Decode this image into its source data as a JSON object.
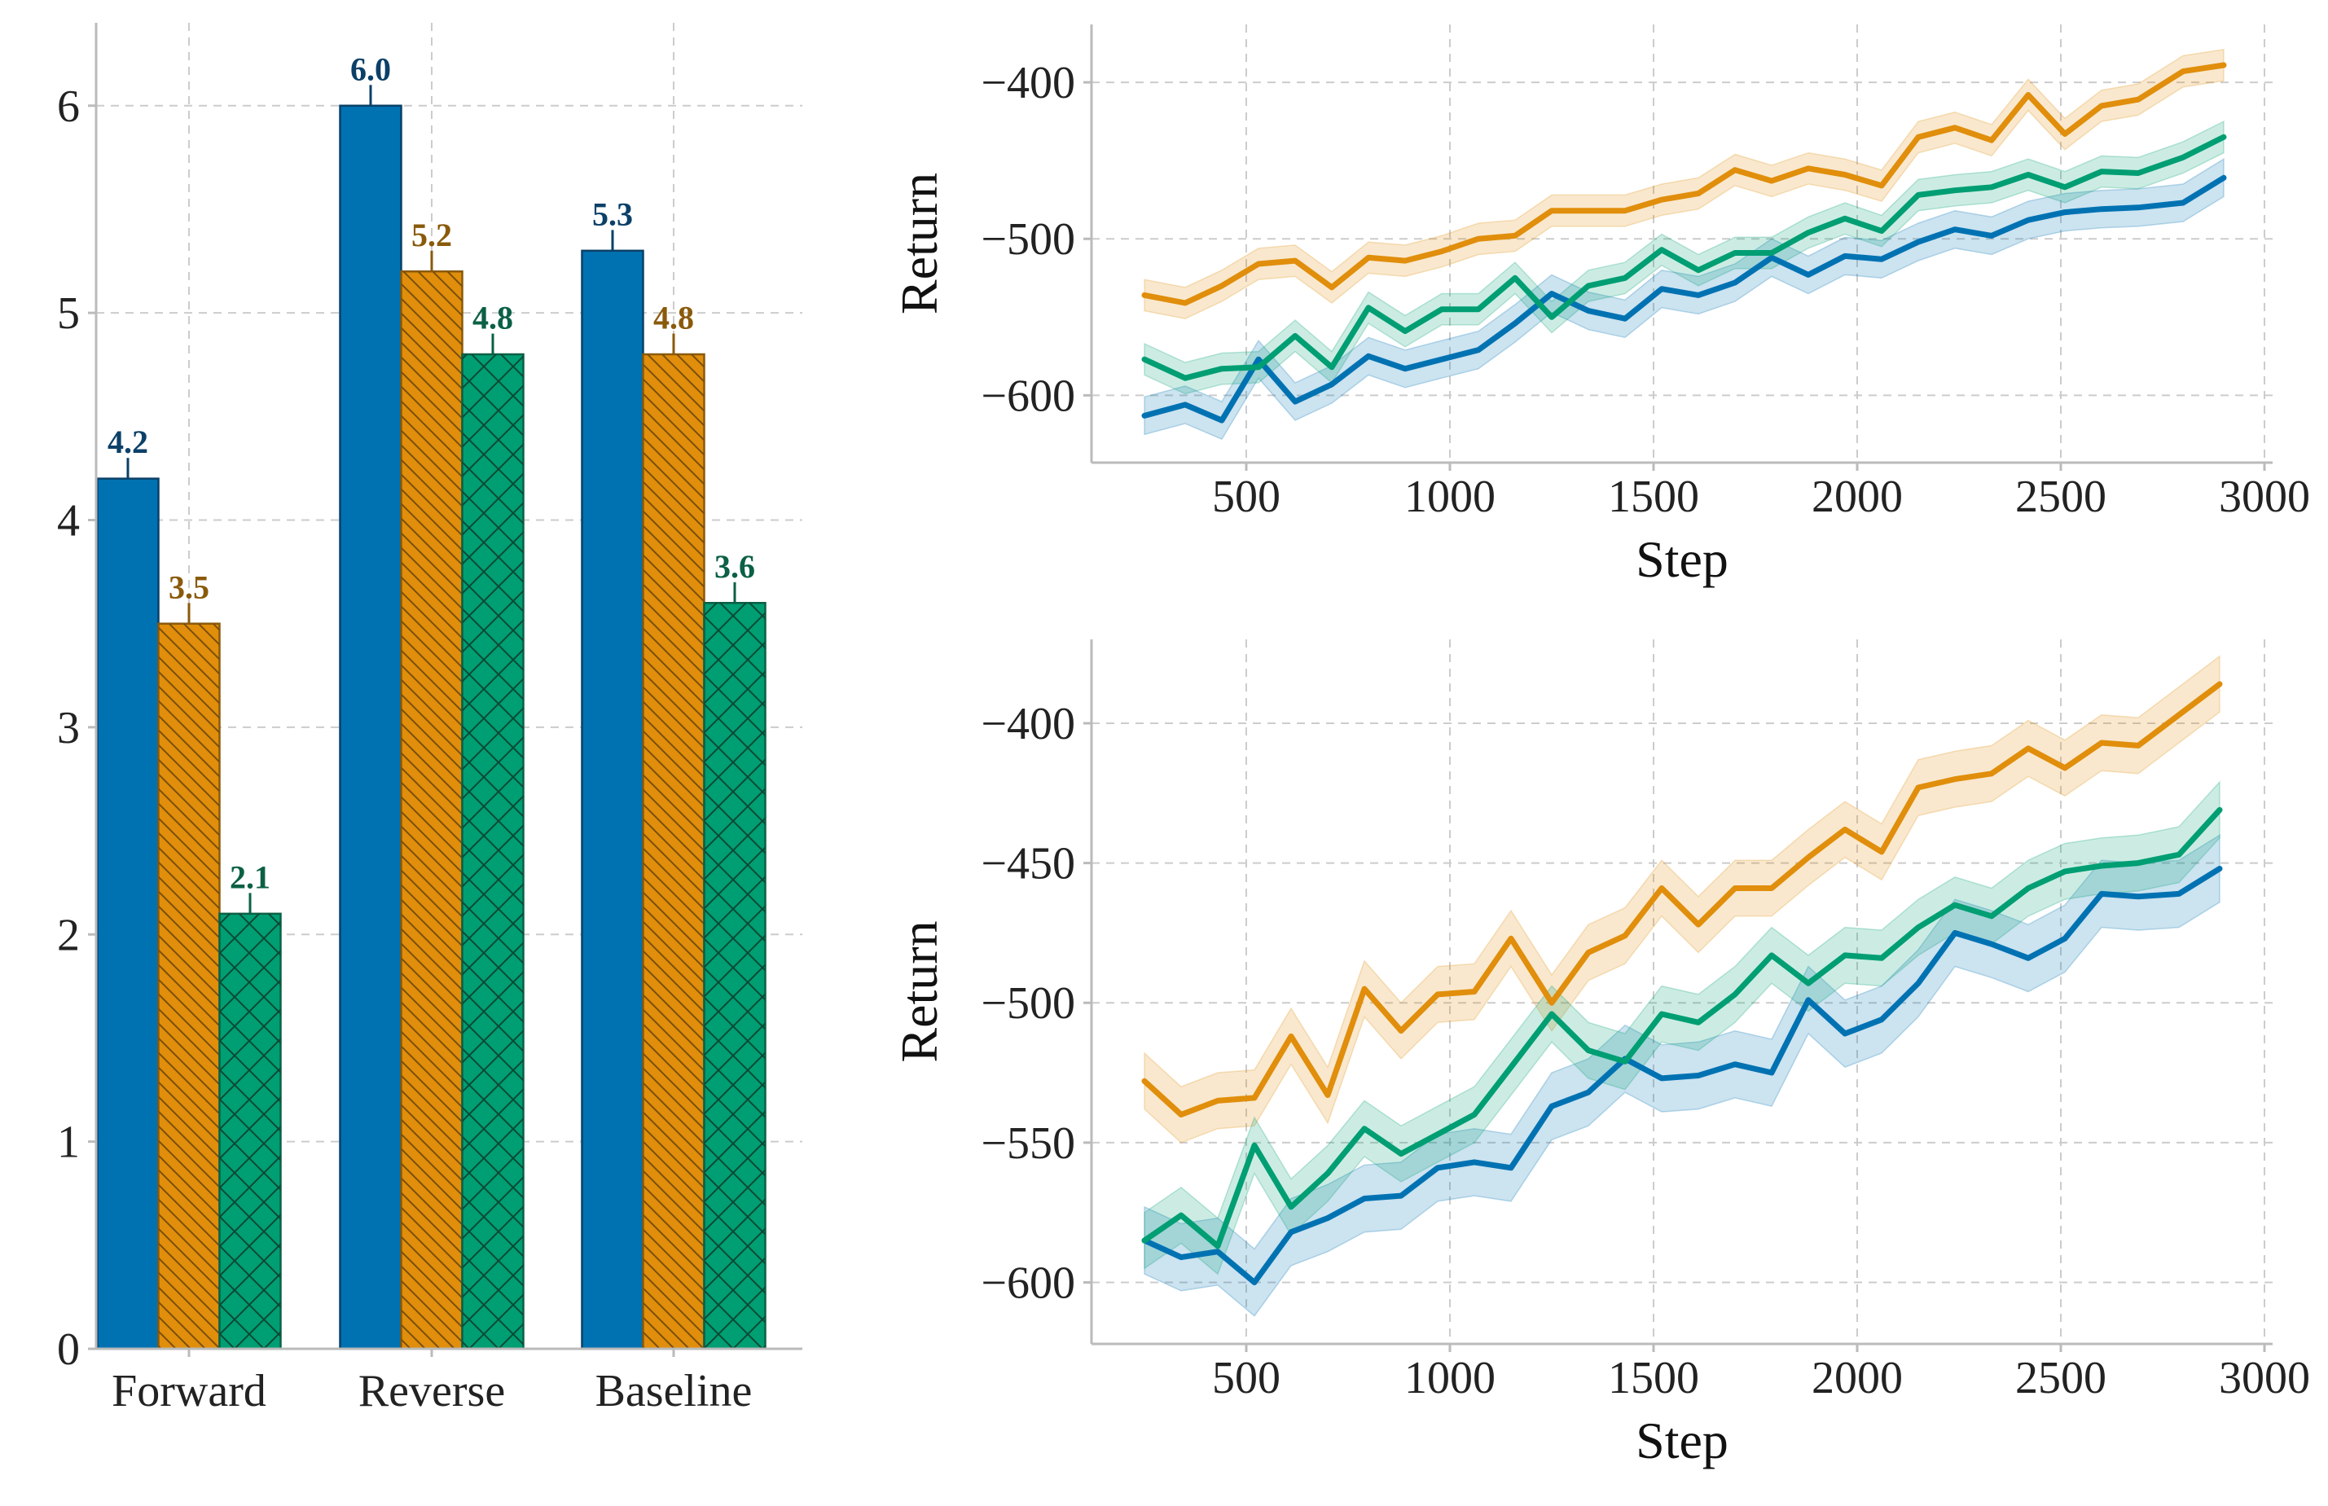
{
  "chart_data": [
    {
      "type": "bar",
      "categories": [
        "Forward",
        "Reverse",
        "Baseline"
      ],
      "series": [
        {
          "values": [
            4.2,
            6.0,
            5.3
          ],
          "errors": [
            0.1,
            0.1,
            0.1
          ],
          "labels": [
            "4.2",
            "6.0",
            "5.3"
          ],
          "color": "#0072b2",
          "label_color": "#0b4068",
          "hatch": "none"
        },
        {
          "values": [
            3.5,
            5.2,
            4.8
          ],
          "errors": [
            0.1,
            0.1,
            0.1
          ],
          "labels": [
            "3.5",
            "5.2",
            "4.8"
          ],
          "color": "#e08e0b",
          "label_color": "#8a5a0b",
          "hatch": "backslash"
        },
        {
          "values": [
            2.1,
            4.8,
            3.6
          ],
          "errors": [
            0.1,
            0.1,
            0.1
          ],
          "labels": [
            "2.1",
            "4.8",
            "3.6"
          ],
          "color": "#009e73",
          "label_color": "#0b6045",
          "hatch": "cross"
        }
      ],
      "ylim": [
        0,
        6.4
      ],
      "yticks": [
        0,
        1,
        2,
        3,
        4,
        5,
        6
      ],
      "ytick_labels": [
        "0",
        "1",
        "2",
        "3",
        "4",
        "5",
        "6"
      ],
      "xlabel": "",
      "ylabel": "",
      "grid": true
    },
    {
      "type": "line",
      "xlabel": "Step",
      "ylabel": "Return",
      "xlim": [
        120,
        3020
      ],
      "ylim": [
        -643,
        -363
      ],
      "xticks": [
        500,
        1000,
        1500,
        2000,
        2500,
        3000
      ],
      "xtick_labels": [
        "500",
        "1000",
        "1500",
        "2000",
        "2500",
        "3000"
      ],
      "yticks": [
        -600,
        -500,
        -400
      ],
      "ytick_labels": [
        "−600",
        "−500",
        "−400"
      ],
      "grid": true,
      "x": [
        250,
        350,
        440,
        530,
        620,
        710,
        800,
        890,
        980,
        1070,
        1160,
        1250,
        1340,
        1430,
        1520,
        1610,
        1700,
        1790,
        1880,
        1970,
        2060,
        2150,
        2240,
        2330,
        2420,
        2510,
        2600,
        2690,
        2800,
        2900
      ],
      "series": [
        {
          "color": "#0072b2",
          "band": 12,
          "values": [
            -613,
            -606,
            -616,
            -577,
            -604,
            -593,
            -575,
            -583,
            -577,
            -571,
            -554,
            -535,
            -546,
            -551,
            -532,
            -536,
            -528,
            -512,
            -523,
            -511,
            -513,
            -502,
            -494,
            -498,
            -488,
            -483,
            -481,
            -480,
            -477,
            -461
          ]
        },
        {
          "color": "#e08e0b",
          "band": 10,
          "values": [
            -536,
            -541,
            -530,
            -516,
            -514,
            -531,
            -512,
            -514,
            -508,
            -500,
            -498,
            -482,
            -482,
            -482,
            -475,
            -471,
            -456,
            -463,
            -455,
            -459,
            -466,
            -435,
            -429,
            -437,
            -408,
            -433,
            -415,
            -411,
            -393,
            -389
          ]
        },
        {
          "color": "#009e73",
          "band": 10,
          "values": [
            -577,
            -589,
            -583,
            -582,
            -562,
            -582,
            -544,
            -559,
            -545,
            -545,
            -525,
            -550,
            -530,
            -525,
            -507,
            -520,
            -509,
            -509,
            -496,
            -487,
            -495,
            -472,
            -469,
            -467,
            -459,
            -467,
            -457,
            -458,
            -448,
            -435
          ]
        }
      ]
    },
    {
      "type": "line",
      "xlabel": "Step",
      "ylabel": "Return",
      "xlim": [
        120,
        3020
      ],
      "ylim": [
        -622,
        -370
      ],
      "xticks": [
        500,
        1000,
        1500,
        2000,
        2500,
        3000
      ],
      "xtick_labels": [
        "500",
        "1000",
        "1500",
        "2000",
        "2500",
        "3000"
      ],
      "yticks": [
        -600,
        -550,
        -500,
        -450,
        -400
      ],
      "ytick_labels": [
        "−600",
        "−550",
        "−500",
        "−450",
        "−400"
      ],
      "grid": true,
      "x": [
        250,
        340,
        430,
        520,
        610,
        700,
        790,
        880,
        970,
        1060,
        1150,
        1250,
        1340,
        1430,
        1520,
        1610,
        1700,
        1790,
        1880,
        1970,
        2060,
        2150,
        2240,
        2330,
        2420,
        2510,
        2600,
        2690,
        2790,
        2890
      ],
      "series": [
        {
          "color": "#0072b2",
          "band": 12,
          "values": [
            -585,
            -591,
            -589,
            -600,
            -582,
            -577,
            -570,
            -569,
            -559,
            -557,
            -559,
            -537,
            -532,
            -520,
            -527,
            -526,
            -522,
            -525,
            -499,
            -511,
            -506,
            -493,
            -475,
            -479,
            -484,
            -477,
            -461,
            -462,
            -461,
            -452
          ]
        },
        {
          "color": "#e08e0b",
          "band": 10,
          "values": [
            -528,
            -540,
            -535,
            -534,
            -512,
            -533,
            -495,
            -510,
            -497,
            -496,
            -477,
            -500,
            -482,
            -476,
            -459,
            -472,
            -459,
            -459,
            -448,
            -438,
            -446,
            -423,
            -420,
            -418,
            -409,
            -416,
            -407,
            -408,
            -397,
            -386
          ]
        },
        {
          "color": "#009e73",
          "band": 10,
          "values": [
            -585,
            -576,
            -587,
            -551,
            -573,
            -561,
            -545,
            -554,
            -547,
            -540,
            -523,
            -504,
            -517,
            -521,
            -504,
            -507,
            -497,
            -483,
            -493,
            -483,
            -484,
            -473,
            -465,
            -469,
            -459,
            -453,
            -451,
            -450,
            -447,
            -431
          ]
        }
      ]
    }
  ]
}
